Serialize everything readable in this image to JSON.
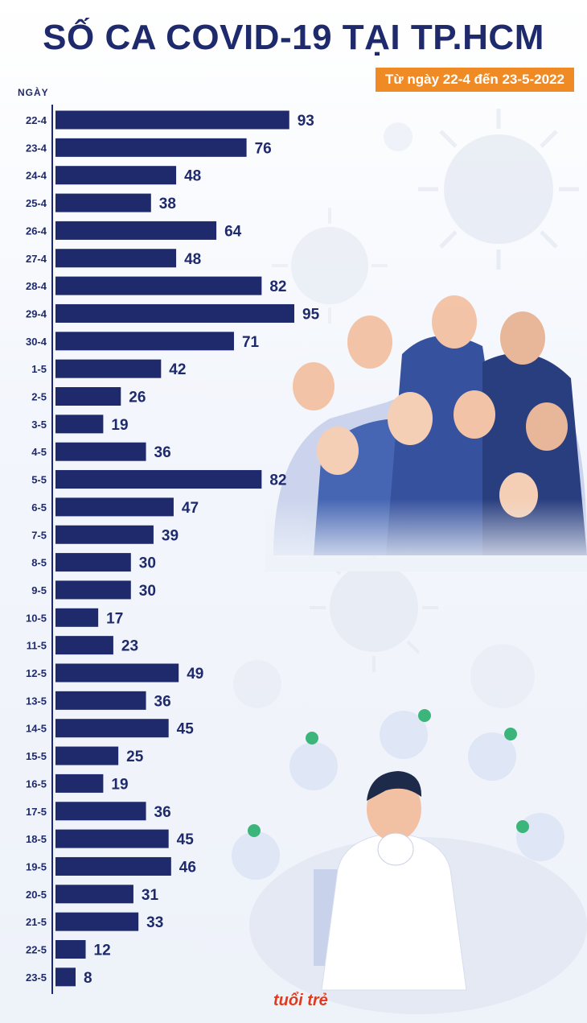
{
  "header": {
    "title": "SỐ CA COVID-19 TẠI TP.HCM",
    "subtitle": "Từ ngày 22-4 đến 23-5-2022"
  },
  "brand": {
    "logo_text": "tuổi trẻ"
  },
  "colors": {
    "bar": "#1e2a6b",
    "title": "#1e2a6b",
    "subtitle_bg": "#f08a24",
    "logo": "#e03a1e"
  },
  "chart_data": {
    "type": "bar",
    "orientation": "horizontal",
    "xlabel": "",
    "ylabel": "NGÀY",
    "categories": [
      "22-4",
      "23-4",
      "24-4",
      "25-4",
      "26-4",
      "27-4",
      "28-4",
      "29-4",
      "30-4",
      "1-5",
      "2-5",
      "3-5",
      "4-5",
      "5-5",
      "6-5",
      "7-5",
      "8-5",
      "9-5",
      "10-5",
      "11-5",
      "12-5",
      "13-5",
      "14-5",
      "15-5",
      "16-5",
      "17-5",
      "18-5",
      "19-5",
      "20-5",
      "21-5",
      "22-5",
      "23-5"
    ],
    "values": [
      93,
      76,
      48,
      38,
      64,
      48,
      82,
      95,
      71,
      42,
      26,
      19,
      36,
      82,
      47,
      39,
      30,
      30,
      17,
      23,
      49,
      36,
      45,
      25,
      19,
      36,
      45,
      46,
      31,
      33,
      12,
      8
    ],
    "xlim": [
      0,
      95
    ],
    "grid": false,
    "legend": "none",
    "data_labels": true
  }
}
